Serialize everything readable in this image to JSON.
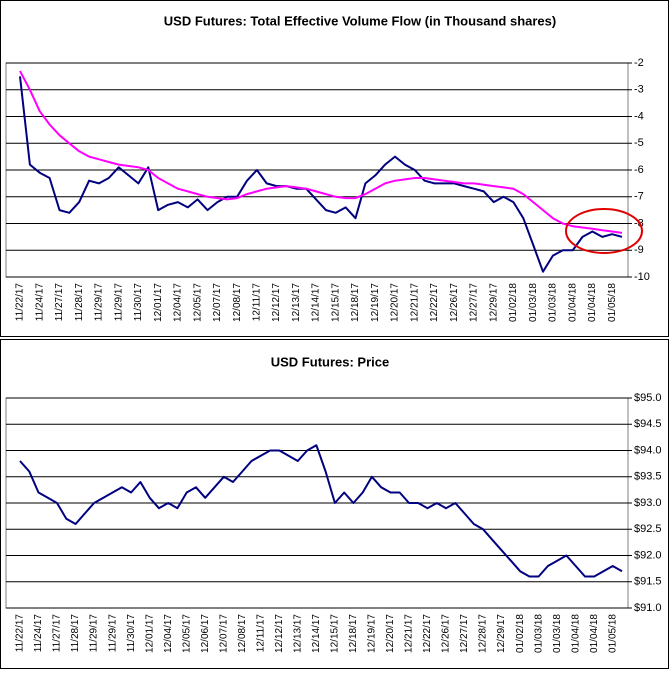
{
  "chart_data": [
    {
      "type": "line",
      "title": "USD Futures: Total Effective Volume Flow (in Thousand shares)",
      "categories": [
        "11/22/17",
        null,
        "11/24/17",
        null,
        "11/27/17",
        null,
        "11/28/17",
        null,
        "11/29/17",
        null,
        "11/29/17",
        null,
        "11/30/17",
        null,
        "12/01/17",
        null,
        "12/04/17",
        null,
        "12/05/17",
        null,
        "12/07/17",
        null,
        "12/08/17",
        null,
        "12/11/17",
        null,
        "12/12/17",
        null,
        "12/13/17",
        null,
        "12/14/17",
        null,
        "12/15/17",
        null,
        "12/18/17",
        null,
        "12/19/17",
        null,
        "12/20/17",
        null,
        "12/21/17",
        null,
        "12/22/17",
        null,
        "12/26/17",
        null,
        "12/27/17",
        null,
        "12/29/17",
        null,
        "01/02/18",
        null,
        "01/03/18",
        null,
        "01/03/18",
        null,
        "01/04/18",
        null,
        "01/04/18",
        null,
        "01/05/18",
        null
      ],
      "series": [
        {
          "color": "#000080",
          "values": [
            -2.5,
            -5.8,
            -6.1,
            -6.3,
            -7.5,
            -7.6,
            -7.2,
            -6.4,
            -6.5,
            -6.3,
            -5.9,
            -6.2,
            -6.5,
            -5.9,
            -7.5,
            -7.3,
            -7.2,
            -7.4,
            -7.1,
            -7.5,
            -7.2,
            -7.0,
            -7.0,
            -6.4,
            -6.0,
            -6.5,
            -6.6,
            -6.6,
            -6.7,
            -6.7,
            -7.1,
            -7.5,
            -7.6,
            -7.4,
            -7.8,
            -6.5,
            -6.2,
            -5.8,
            -5.5,
            -5.8,
            -6.0,
            -6.4,
            -6.5,
            -6.5,
            -6.5,
            -6.6,
            -6.7,
            -6.8,
            -7.2,
            -7.0,
            -7.2,
            -7.8,
            -8.8,
            -9.8,
            -9.2,
            -9.0,
            -9.0,
            -8.5,
            -8.3,
            -8.5,
            -8.4,
            -8.5
          ]
        },
        {
          "color": "#ff00ff",
          "values": [
            -2.3,
            -3,
            -3.8,
            -4.3,
            -4.7,
            -5,
            -5.3,
            -5.5,
            -5.6,
            -5.7,
            -5.8,
            -5.85,
            -5.9,
            -6.0,
            -6.3,
            -6.5,
            -6.7,
            -6.8,
            -6.9,
            -7.0,
            -7.05,
            -7.1,
            -7.05,
            -6.9,
            -6.8,
            -6.7,
            -6.65,
            -6.6,
            -6.65,
            -6.7,
            -6.8,
            -6.9,
            -7.0,
            -7.05,
            -7.05,
            -6.9,
            -6.7,
            -6.5,
            -6.4,
            -6.35,
            -6.3,
            -6.3,
            -6.35,
            -6.4,
            -6.45,
            -6.5,
            -6.5,
            -6.55,
            -6.6,
            -6.65,
            -6.7,
            -6.9,
            -7.2,
            -7.5,
            -7.8,
            -8.0,
            -8.1,
            -8.15,
            -8.2,
            -8.25,
            -8.3,
            -8.35
          ]
        }
      ],
      "ylim": [
        -10,
        -2
      ],
      "yticks": [
        -2,
        -3,
        -4,
        -5,
        -6,
        -7,
        -8,
        -9,
        -10
      ],
      "grid": true
    },
    {
      "type": "line",
      "title": "USD Futures: Price",
      "categories": [
        "11/22/17",
        null,
        "11/24/17",
        null,
        "11/27/17",
        null,
        "11/28/17",
        null,
        "11/29/17",
        null,
        "11/29/17",
        null,
        "11/30/17",
        null,
        "12/01/17",
        null,
        "12/04/17",
        null,
        "12/05/17",
        null,
        "12/06/17",
        null,
        "12/07/17",
        null,
        "12/08/17",
        null,
        "12/11/17",
        null,
        "12/12/17",
        null,
        "12/13/17",
        null,
        "12/14/17",
        null,
        "12/15/17",
        null,
        "12/18/17",
        null,
        "12/19/17",
        null,
        "12/20/17",
        null,
        "12/21/17",
        null,
        "12/22/17",
        null,
        "12/26/17",
        null,
        "12/27/17",
        null,
        "12/28/17",
        null,
        "12/29/17",
        null,
        "01/02/18",
        null,
        "01/03/18",
        null,
        "01/03/18",
        null,
        "01/04/18",
        null,
        "01/04/18",
        null,
        "01/05/18",
        null
      ],
      "series": [
        {
          "color": "#000080",
          "values": [
            93.8,
            93.6,
            93.2,
            93.1,
            93.0,
            92.7,
            92.6,
            92.8,
            93.0,
            93.1,
            93.2,
            93.3,
            93.2,
            93.4,
            93.1,
            92.9,
            93.0,
            92.9,
            93.2,
            93.3,
            93.1,
            93.3,
            93.5,
            93.4,
            93.6,
            93.8,
            93.9,
            94.0,
            94.0,
            93.9,
            93.8,
            94.0,
            94.1,
            93.6,
            93.0,
            93.2,
            93.0,
            93.2,
            93.5,
            93.3,
            93.2,
            93.2,
            93.0,
            93.0,
            92.9,
            93.0,
            92.9,
            93.0,
            92.8,
            92.6,
            92.5,
            92.3,
            92.1,
            91.9,
            91.7,
            91.6,
            91.6,
            91.8,
            91.9,
            92.0,
            91.8,
            91.6,
            91.6,
            91.7,
            91.8,
            91.7
          ]
        }
      ],
      "ylim": [
        91,
        95
      ],
      "yticks": [
        {
          "value": 95,
          "label": "$95.0"
        },
        {
          "value": 94.5,
          "label": "$94.5"
        },
        {
          "value": 94,
          "label": "$94.0"
        },
        {
          "value": 93.5,
          "label": "$93.5"
        },
        {
          "value": 93,
          "label": "$93.0"
        },
        {
          "value": 92.5,
          "label": "$92.5"
        },
        {
          "value": 92,
          "label": "$92.0"
        },
        {
          "value": 91.5,
          "label": "$91.5"
        },
        {
          "value": 91,
          "label": "$91.0"
        }
      ],
      "grid": true
    }
  ]
}
